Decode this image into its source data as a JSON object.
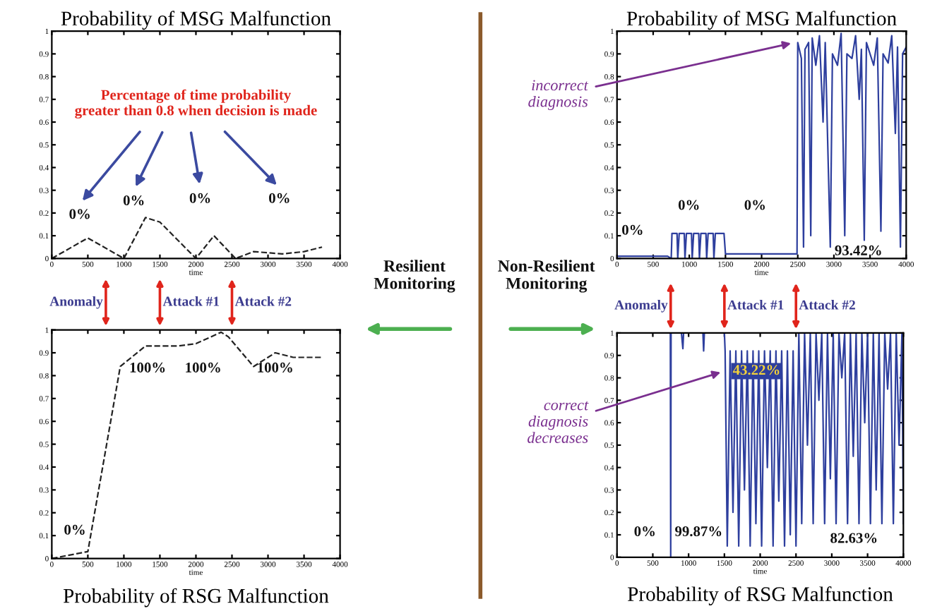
{
  "chart_data": [
    {
      "type": "line",
      "title": "Probability of MSG Malfunction",
      "xlabel": "time",
      "x": [
        0,
        500,
        1000,
        1300,
        1500,
        2000,
        2250,
        2550,
        2800,
        3200,
        3500,
        3750
      ],
      "series": [
        {
          "color": "#222222",
          "values": [
            0,
            0.09,
            0,
            0.18,
            0.16,
            0,
            0.1,
            0,
            0.03,
            0.02,
            0.03,
            0.05
          ]
        }
      ],
      "line_style": "dashed",
      "xlim": [
        0,
        4000
      ],
      "ylim": [
        0,
        1
      ],
      "xticks": [
        0,
        500,
        1000,
        1500,
        2000,
        2500,
        3000,
        3500,
        4000
      ],
      "yticks": [
        0,
        0.1,
        0.2,
        0.3,
        0.4,
        0.5,
        0.6,
        0.7,
        0.8,
        0.9,
        1
      ],
      "annotations": [
        "Percentage of time probability\ngreater than 0.8 when decision is made",
        "0%",
        "0%",
        "0%",
        "0%"
      ]
    },
    {
      "type": "line",
      "title": "Probability of RSG Malfunction",
      "xlabel": "time",
      "x": [
        0,
        500,
        950,
        1300,
        1750,
        2000,
        2350,
        2450,
        2800,
        3100,
        3350,
        3750
      ],
      "series": [
        {
          "color": "#222222",
          "values": [
            0,
            0.03,
            0.84,
            0.93,
            0.93,
            0.94,
            0.99,
            0.97,
            0.84,
            0.9,
            0.88,
            0.88
          ]
        }
      ],
      "line_style": "dashed",
      "xlim": [
        0,
        4000
      ],
      "ylim": [
        0,
        1
      ],
      "xticks": [
        0,
        500,
        1000,
        1500,
        2000,
        2500,
        3000,
        3500,
        4000
      ],
      "yticks": [
        0,
        0.1,
        0.2,
        0.3,
        0.4,
        0.5,
        0.6,
        0.7,
        0.8,
        0.9,
        1
      ],
      "annotations": [
        "Anomaly",
        "Attack #1",
        "Attack #2",
        "0%",
        "100%",
        "100%",
        "100%"
      ]
    },
    {
      "type": "line",
      "title": "Probability of MSG Malfunction",
      "xlabel": "time",
      "x": [
        0,
        700,
        750,
        760,
        830,
        840,
        860,
        930,
        940,
        960,
        1030,
        1040,
        1060,
        1130,
        1140,
        1160,
        1230,
        1240,
        1260,
        1330,
        1340,
        1360,
        1480,
        1500,
        2000,
        2490,
        2500,
        2550,
        2580,
        2600,
        2650,
        2680,
        2700,
        2750,
        2800,
        2850,
        2880,
        2950,
        2980,
        3050,
        3100,
        3150,
        3180,
        3250,
        3300,
        3350,
        3380,
        3420,
        3450,
        3550,
        3600,
        3650,
        3680,
        3750,
        3800,
        3850,
        3880,
        3920,
        3950,
        4000
      ],
      "series": [
        {
          "color": "#2e3f9e",
          "values": [
            0.01,
            0.01,
            0,
            0.11,
            0.11,
            0,
            0.11,
            0.11,
            0,
            0.11,
            0.11,
            0,
            0.11,
            0.11,
            0,
            0.11,
            0.11,
            0,
            0.11,
            0.11,
            0,
            0.11,
            0.11,
            0.02,
            0.02,
            0.02,
            0.95,
            0.88,
            0.05,
            0.92,
            0.95,
            0.1,
            0.97,
            0.85,
            0.98,
            0.6,
            0.95,
            0.05,
            0.9,
            0.85,
            0.99,
            0.1,
            0.9,
            0.88,
            0.98,
            0.7,
            0.92,
            0.08,
            0.95,
            0.85,
            0.97,
            0.12,
            0.9,
            0.86,
            0.98,
            0.55,
            0.93,
            0.05,
            0.9,
            0.93
          ]
        }
      ],
      "xlim": [
        0,
        4000
      ],
      "ylim": [
        0,
        1
      ],
      "xticks": [
        0,
        500,
        1000,
        1500,
        2000,
        2500,
        3000,
        3500,
        4000
      ],
      "yticks": [
        0,
        0.1,
        0.2,
        0.3,
        0.4,
        0.5,
        0.6,
        0.7,
        0.8,
        0.9,
        1
      ],
      "annotations": [
        "0%",
        "0%",
        "0%",
        "93.42%",
        "incorrect\ndiagnosis"
      ]
    },
    {
      "type": "line",
      "title": "Probability of RSG Malfunction",
      "xlabel": "time",
      "x": [
        0,
        700,
        745,
        750,
        755,
        900,
        920,
        930,
        1200,
        1210,
        1220,
        1500,
        1510,
        1540,
        1580,
        1620,
        1660,
        1700,
        1740,
        1780,
        1820,
        1860,
        1900,
        1940,
        1980,
        2020,
        2060,
        2100,
        2140,
        2180,
        2220,
        2260,
        2300,
        2340,
        2380,
        2420,
        2460,
        2500,
        2540,
        2580,
        2620,
        2660,
        2700,
        2740,
        2780,
        2820,
        2860,
        2900,
        2940,
        2980,
        3020,
        3060,
        3100,
        3140,
        3180,
        3220,
        3260,
        3300,
        3340,
        3380,
        3420,
        3460,
        3500,
        3540,
        3580,
        3620,
        3660,
        3700,
        3740,
        3780,
        3820,
        3860,
        3900,
        3940,
        3980,
        4000
      ],
      "series": [
        {
          "color": "#2e3f9e",
          "values": [
            1,
            1,
            1,
            0,
            1,
            1,
            0.93,
            1,
            1,
            0.92,
            1,
            1,
            0.92,
            0.05,
            0.92,
            0.2,
            0.92,
            0.05,
            0.92,
            0.3,
            0.92,
            0.05,
            0.92,
            0.15,
            0.92,
            0.05,
            0.92,
            0.4,
            0.92,
            0.05,
            0.92,
            0.25,
            0.92,
            0.05,
            0.92,
            0.1,
            0.92,
            0.05,
            1,
            0.15,
            1,
            0.5,
            1,
            0.15,
            1,
            0.7,
            1,
            0.15,
            1,
            0.35,
            1,
            0.15,
            1,
            0.8,
            1,
            0.15,
            1,
            0.45,
            1,
            0.15,
            1,
            0.6,
            1,
            0.15,
            1,
            0.3,
            1,
            0.15,
            1,
            0.75,
            1,
            0.15,
            1,
            0.5,
            1,
            0.15
          ]
        }
      ],
      "xlim": [
        0,
        4000
      ],
      "ylim": [
        0,
        1
      ],
      "xticks": [
        0,
        500,
        1000,
        1500,
        2000,
        2500,
        3000,
        3500,
        4000
      ],
      "yticks": [
        0,
        0.1,
        0.2,
        0.3,
        0.4,
        0.5,
        0.6,
        0.7,
        0.8,
        0.9,
        1
      ],
      "annotations": [
        "Anomaly",
        "Attack #1",
        "Attack #2",
        "0%",
        "99.87%",
        "43.22%",
        "82.63%",
        "correct\ndiagnosis\ndecreases"
      ]
    },
    {
      "type": "other",
      "annotations": [
        "Resilient\nMonitoring",
        "Non-Resilient\nMonitoring"
      ]
    }
  ]
}
